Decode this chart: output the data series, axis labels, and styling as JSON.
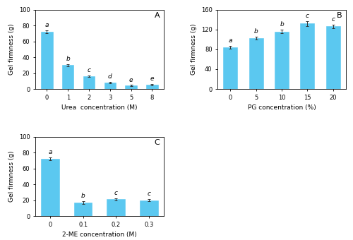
{
  "panel_A": {
    "categories": [
      "0",
      "1",
      "2",
      "3",
      "5",
      "8"
    ],
    "values": [
      72,
      30,
      16,
      8,
      4.5,
      5.5
    ],
    "errors": [
      2.0,
      1.5,
      1.0,
      0.8,
      0.6,
      0.6
    ],
    "letters": [
      "a",
      "b",
      "c",
      "d",
      "e",
      "e"
    ],
    "xlabel": "Urea  concentration (M)",
    "ylabel": "Gel firmness (g)",
    "ylim": [
      0,
      100
    ],
    "yticks": [
      0,
      20,
      40,
      60,
      80,
      100
    ],
    "label": "A"
  },
  "panel_B": {
    "categories": [
      "0",
      "5",
      "10",
      "15",
      "20"
    ],
    "values": [
      84,
      102,
      116,
      132,
      126
    ],
    "errors": [
      2.5,
      3.0,
      4.0,
      5.0,
      3.5
    ],
    "letters": [
      "a",
      "b",
      "b",
      "c",
      "c"
    ],
    "xlabel": "PG concentration (%)",
    "ylabel": "Gel firmness (g)",
    "ylim": [
      0,
      160
    ],
    "yticks": [
      0,
      40,
      80,
      120,
      160
    ],
    "label": "B"
  },
  "panel_C": {
    "categories": [
      "0",
      "0.1",
      "0.2",
      "0.3"
    ],
    "values": [
      72,
      17,
      21,
      20
    ],
    "errors": [
      2.0,
      1.5,
      1.5,
      1.5
    ],
    "letters": [
      "a",
      "b",
      "c",
      "c"
    ],
    "xlabel": "2-ME concentration (M)",
    "ylabel": "Gel firmness (g)",
    "ylim": [
      0,
      100
    ],
    "yticks": [
      0,
      20,
      40,
      60,
      80,
      100
    ],
    "label": "C"
  },
  "bar_color": "#5BC8F0",
  "bar_edgecolor": "#5BC8F0",
  "error_color": "#333333",
  "label_fontsize": 6.5,
  "tick_fontsize": 6,
  "letter_fontsize": 6.5,
  "panel_label_fontsize": 8
}
